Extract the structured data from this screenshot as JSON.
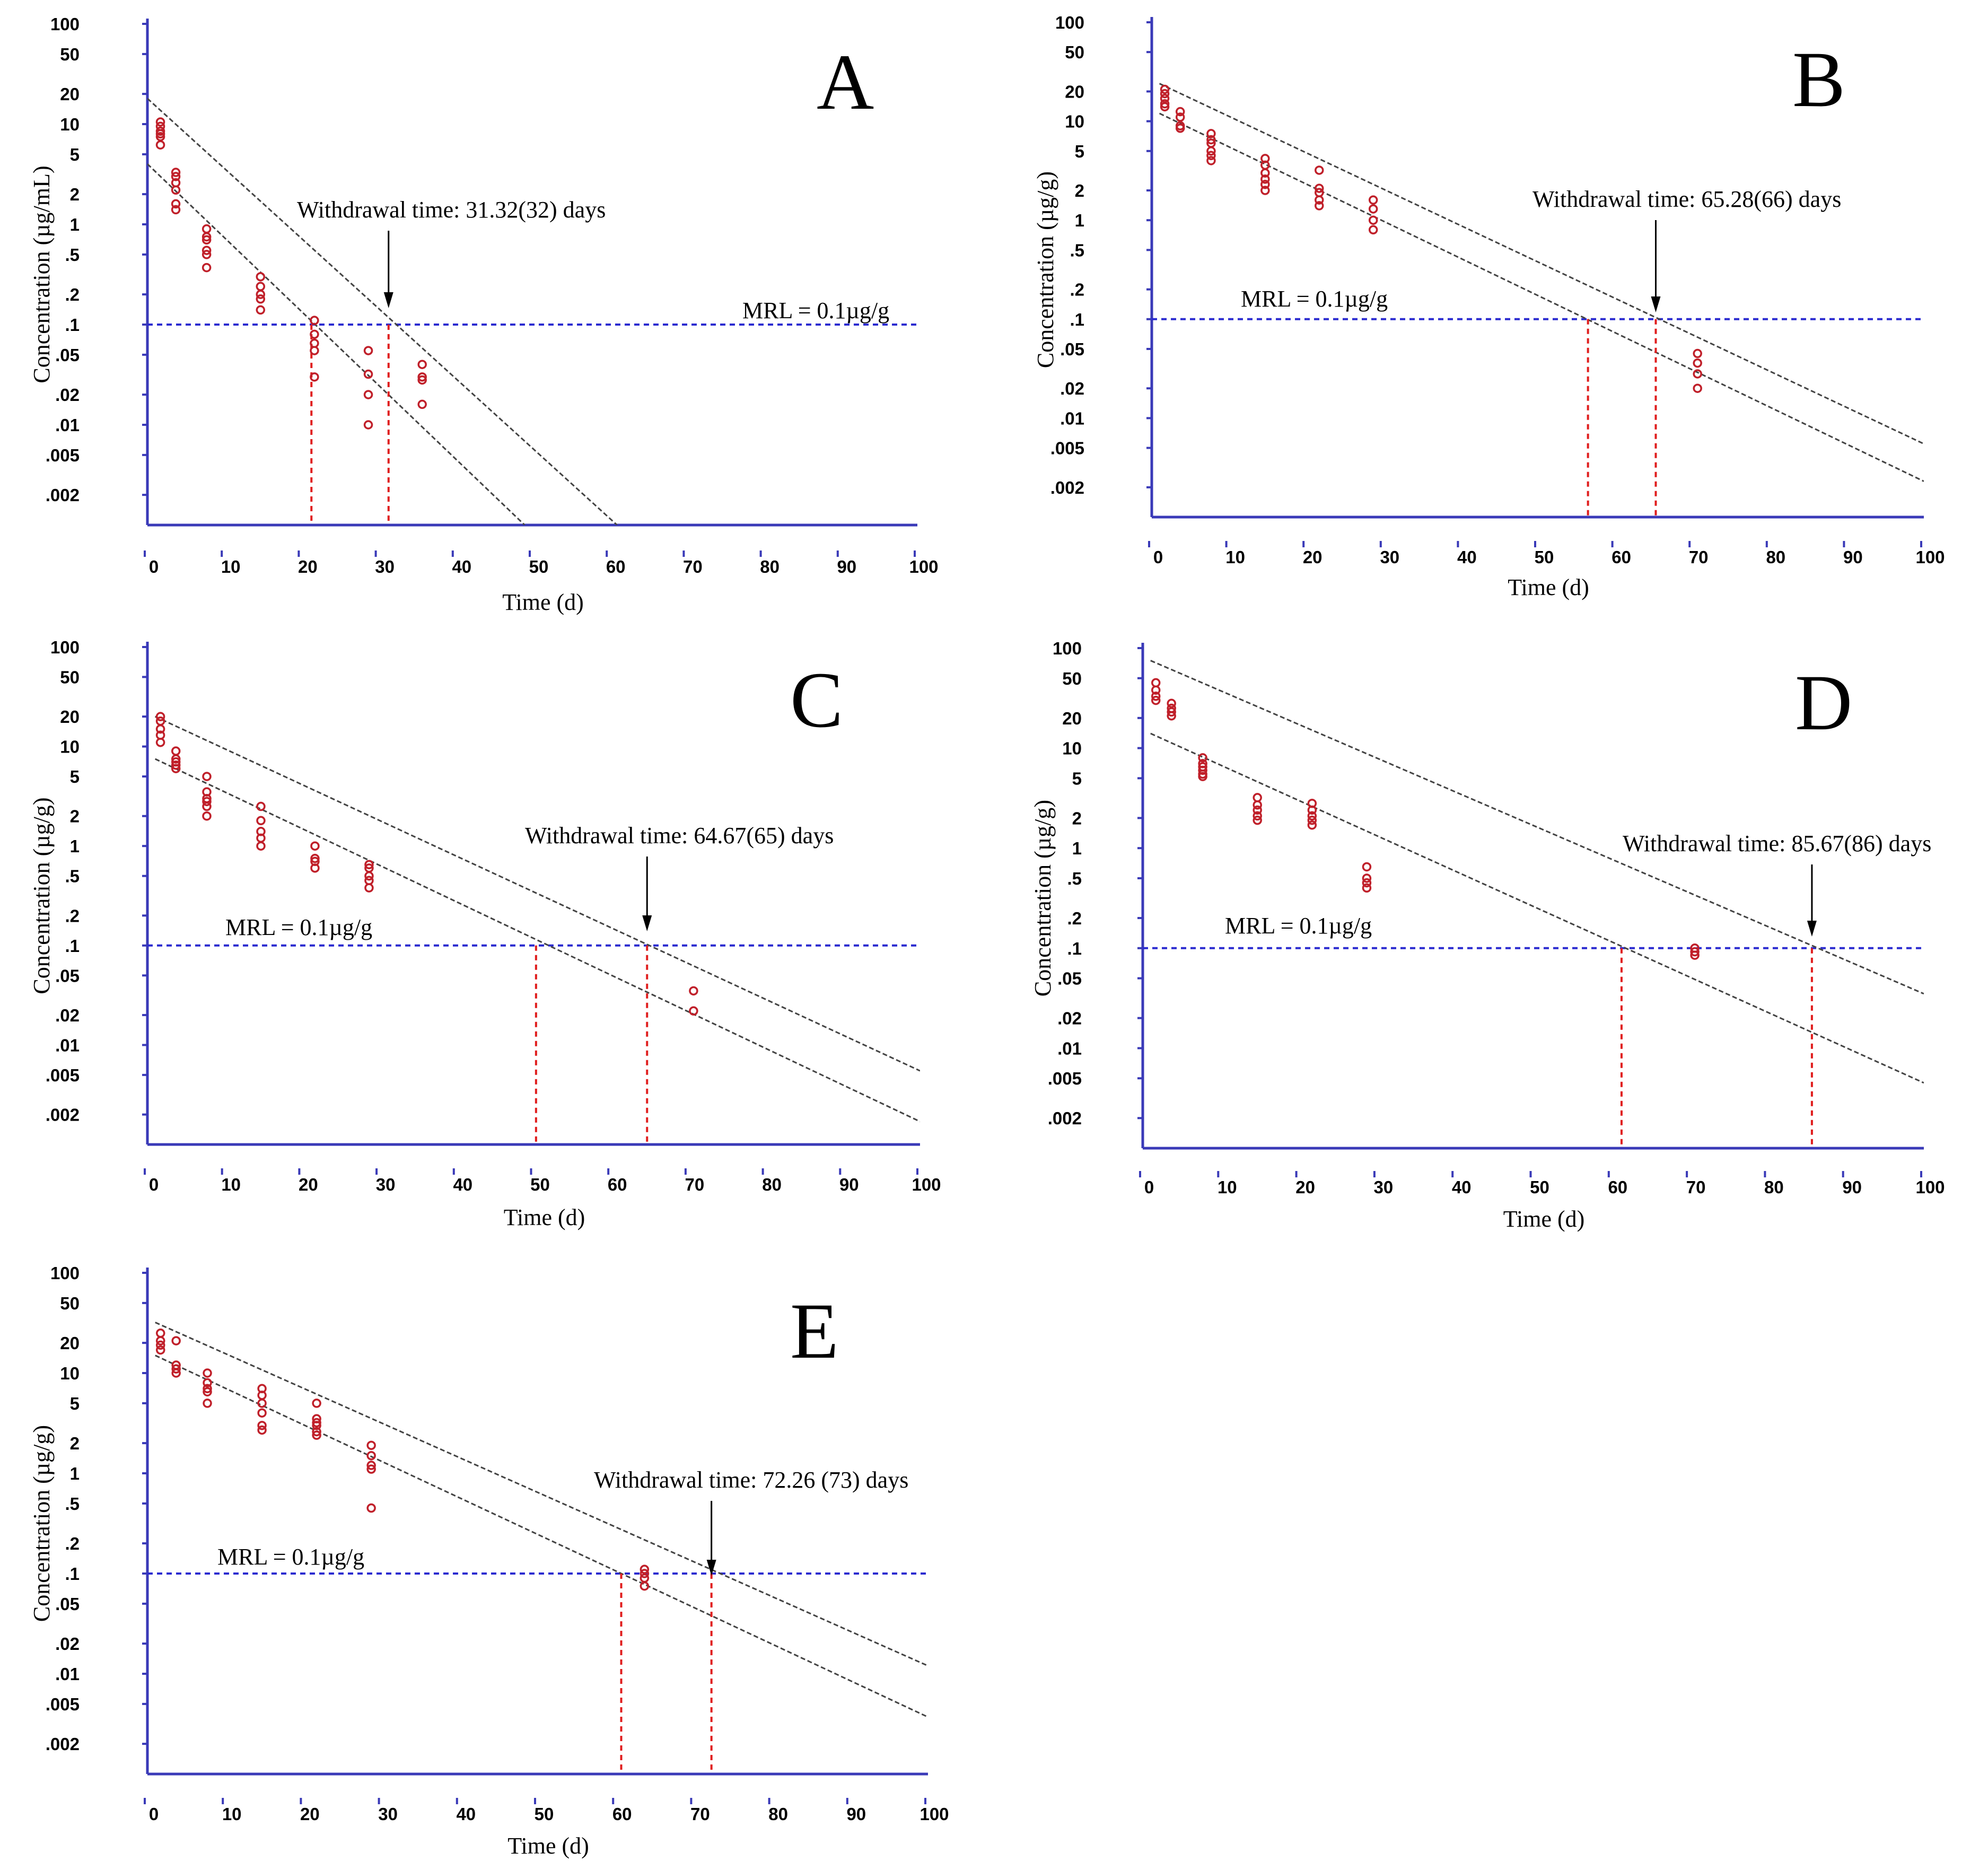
{
  "chart_data": [
    {
      "panel": "A",
      "type": "scatter",
      "xlabel": "Time (d)",
      "ylabel": "Concentration (µg/mL)",
      "xlim": [
        0,
        100
      ],
      "ylim": [
        0.001,
        100
      ],
      "yscale": "log",
      "xticks": [
        "0",
        "10",
        "20",
        "30",
        "40",
        "50",
        "60",
        "70",
        "80",
        "90",
        "100"
      ],
      "yticks": [
        "100",
        "50",
        "20",
        "10",
        "5",
        "2",
        "1",
        ".5",
        ".2",
        ".1",
        ".05",
        ".02",
        ".01",
        ".005",
        ".002"
      ],
      "mrl_value": 0.1,
      "mrl_label": "MRL = 0.1µg/g",
      "withdrawal_label": "Withdrawal time: 31.32(32) days",
      "withdrawal_time": 31.32,
      "lower_crossing": 21.3,
      "lines": [
        {
          "name": "upper tolerance limit",
          "x": [
            0,
            61
          ],
          "y": [
            18,
            0.001
          ]
        },
        {
          "name": "regression line",
          "x": [
            0,
            49
          ],
          "y": [
            4,
            0.001
          ]
        }
      ],
      "points": {
        "x": [
          1,
          1,
          1,
          1,
          1,
          1,
          3,
          3,
          3,
          3,
          3,
          3,
          7,
          7,
          7,
          7,
          7,
          7,
          14,
          14,
          14,
          14,
          14,
          21,
          21,
          21,
          21,
          21,
          28,
          28,
          28,
          28,
          35,
          35,
          35,
          35
        ],
        "y": [
          10.5,
          9.5,
          8.5,
          8,
          7.5,
          6.2,
          3.3,
          3,
          2.6,
          2.2,
          1.6,
          1.4,
          0.9,
          0.75,
          0.7,
          0.55,
          0.5,
          0.37,
          0.3,
          0.24,
          0.2,
          0.18,
          0.14,
          0.11,
          0.08,
          0.065,
          0.055,
          0.03,
          0.055,
          0.032,
          0.02,
          0.01,
          0.04,
          0.03,
          0.028,
          0.016
        ]
      }
    },
    {
      "panel": "B",
      "type": "scatter",
      "xlabel": "Time (d)",
      "ylabel": "Concentration (µg/g)",
      "xlim": [
        0,
        100
      ],
      "ylim": [
        0.001,
        100
      ],
      "yscale": "log",
      "xticks": [
        "0",
        "10",
        "20",
        "30",
        "40",
        "50",
        "60",
        "70",
        "80",
        "90",
        "100"
      ],
      "yticks": [
        "100",
        "50",
        "20",
        "10",
        "5",
        "2",
        "1",
        ".5",
        ".2",
        ".1",
        ".05",
        ".02",
        ".01",
        ".005",
        ".002"
      ],
      "mrl_value": 0.1,
      "mrl_label": "MRL = 0.1µg/g",
      "withdrawal_label": "Withdrawal time: 65.28(66) days",
      "withdrawal_time": 65.28,
      "lower_crossing": 56.5,
      "lines": [
        {
          "name": "upper tolerance limit",
          "x": [
            1,
            100
          ],
          "y": [
            24,
            0.0055
          ]
        },
        {
          "name": "regression line",
          "x": [
            1,
            100
          ],
          "y": [
            12,
            0.0023
          ]
        }
      ],
      "points": {
        "x": [
          1,
          1,
          1,
          1,
          1,
          3,
          3,
          3,
          3,
          7,
          7,
          7,
          7,
          7,
          7,
          14,
          14,
          14,
          14,
          14,
          14,
          21,
          21,
          21,
          21,
          21,
          28,
          28,
          28,
          28,
          70,
          70,
          70,
          70
        ],
        "y": [
          21,
          19,
          17,
          15,
          14,
          12.5,
          11,
          9,
          8.5,
          7.5,
          6.5,
          6,
          5,
          4.5,
          4,
          4.2,
          3.6,
          3,
          2.6,
          2.3,
          2,
          3.2,
          2.1,
          1.9,
          1.6,
          1.4,
          1.6,
          1.3,
          1,
          0.8,
          0.045,
          0.036,
          0.028,
          0.02
        ]
      }
    },
    {
      "panel": "C",
      "type": "scatter",
      "xlabel": "Time (d)",
      "ylabel": "Concentration (µg/g)",
      "xlim": [
        0,
        100
      ],
      "ylim": [
        0.001,
        100
      ],
      "yscale": "log",
      "xticks": [
        "0",
        "10",
        "20",
        "30",
        "40",
        "50",
        "60",
        "70",
        "80",
        "90",
        "100"
      ],
      "yticks": [
        "100",
        "50",
        "20",
        "10",
        "5",
        "2",
        "1",
        ".5",
        ".2",
        ".1",
        ".05",
        ".02",
        ".01",
        ".005",
        ".002"
      ],
      "mrl_value": 0.1,
      "mrl_label": "MRL = 0.1µg/g",
      "withdrawal_label": "Withdrawal time: 64.67(65) days",
      "withdrawal_time": 64.67,
      "lower_crossing": 50.3,
      "lines": [
        {
          "name": "upper tolerance limit",
          "x": [
            1,
            100
          ],
          "y": [
            20,
            0.0055
          ]
        },
        {
          "name": "regression line",
          "x": [
            1,
            100
          ],
          "y": [
            7.5,
            0.0017
          ]
        }
      ],
      "points": {
        "x": [
          1,
          1,
          1,
          1,
          1,
          3,
          3,
          3,
          3,
          3,
          7,
          7,
          7,
          7,
          7,
          7,
          14,
          14,
          14,
          14,
          14,
          21,
          21,
          21,
          21,
          28,
          28,
          28,
          28,
          28,
          70,
          70
        ],
        "y": [
          20,
          18,
          15,
          13,
          11,
          9,
          7.5,
          7,
          6.5,
          6,
          5,
          3.5,
          3,
          2.8,
          2.5,
          2,
          2.5,
          1.8,
          1.4,
          1.2,
          1,
          1,
          0.75,
          0.7,
          0.6,
          0.65,
          0.6,
          0.5,
          0.45,
          0.38,
          0.035,
          0.022
        ]
      }
    },
    {
      "panel": "D",
      "type": "scatter",
      "xlabel": "Time (d)",
      "ylabel": "Concentration (µg/g)",
      "xlim": [
        0,
        100
      ],
      "ylim": [
        0.001,
        100
      ],
      "yscale": "log",
      "xticks": [
        "0",
        "10",
        "20",
        "30",
        "40",
        "50",
        "60",
        "70",
        "80",
        "90",
        "100"
      ],
      "yticks": [
        "100",
        "50",
        "20",
        "10",
        "5",
        "2",
        "1",
        ".5",
        ".2",
        ".1",
        ".05",
        ".02",
        ".01",
        ".005",
        ".002"
      ],
      "mrl_value": 0.1,
      "mrl_label": "MRL = 0.1µg/g",
      "withdrawal_label": "Withdrawal time: 85.67(86) days",
      "withdrawal_time": 85.67,
      "lower_crossing": 61.3,
      "lines": [
        {
          "name": "upper tolerance limit",
          "x": [
            1,
            100
          ],
          "y": [
            75,
            0.035
          ]
        },
        {
          "name": "regression line",
          "x": [
            1,
            100
          ],
          "y": [
            14,
            0.0045
          ]
        }
      ],
      "points": {
        "x": [
          1,
          1,
          1,
          1,
          3,
          3,
          3,
          3,
          7,
          7,
          7,
          7,
          7,
          7,
          14,
          14,
          14,
          14,
          14,
          21,
          21,
          21,
          21,
          21,
          28,
          28,
          28,
          28,
          70,
          70,
          70
        ],
        "y": [
          45,
          38,
          33,
          30,
          28,
          25,
          23,
          21,
          8,
          7,
          6.5,
          6,
          5.5,
          5.2,
          3.2,
          2.7,
          2.4,
          2.1,
          1.9,
          2.8,
          2.4,
          2.1,
          1.9,
          1.7,
          0.65,
          0.5,
          0.45,
          0.4,
          0.1,
          0.092,
          0.085
        ]
      }
    },
    {
      "panel": "E",
      "type": "scatter",
      "xlabel": "Time (d)",
      "ylabel": "Concentration (µg/g)",
      "xlim": [
        0,
        100
      ],
      "ylim": [
        0.001,
        100
      ],
      "yscale": "log",
      "xticks": [
        "0",
        "10",
        "20",
        "30",
        "40",
        "50",
        "60",
        "70",
        "80",
        "90",
        "100"
      ],
      "yticks": [
        "100",
        "50",
        "20",
        "10",
        "5",
        "2",
        "1",
        ".5",
        ".2",
        ".1",
        ".05",
        ".02",
        ".01",
        ".005",
        ".002"
      ],
      "mrl_value": 0.1,
      "mrl_label": "MRL = 0.1µg/g",
      "withdrawal_label": "Withdrawal time: 72.26 (73) days",
      "withdrawal_time": 72.26,
      "lower_crossing": 60.7,
      "lines": [
        {
          "name": "upper tolerance limit",
          "x": [
            1,
            100
          ],
          "y": [
            32,
            0.012
          ]
        },
        {
          "name": "regression line",
          "x": [
            1,
            100
          ],
          "y": [
            15,
            0.0037
          ]
        }
      ],
      "points": {
        "x": [
          1,
          1,
          1,
          1,
          3,
          3,
          3,
          3,
          7,
          7,
          7,
          7,
          7,
          14,
          14,
          14,
          14,
          14,
          14,
          21,
          21,
          21,
          21,
          21,
          21,
          28,
          28,
          28,
          28,
          28,
          63,
          63,
          63,
          63
        ],
        "y": [
          25,
          21,
          19,
          17,
          21,
          12,
          11,
          10,
          10,
          8,
          7,
          6.5,
          5,
          7,
          6,
          5,
          4,
          3,
          2.7,
          5,
          3.5,
          3.2,
          3,
          2.6,
          2.4,
          1.9,
          1.5,
          1.2,
          1.1,
          0.45,
          0.11,
          0.1,
          0.09,
          0.075
        ]
      }
    }
  ]
}
